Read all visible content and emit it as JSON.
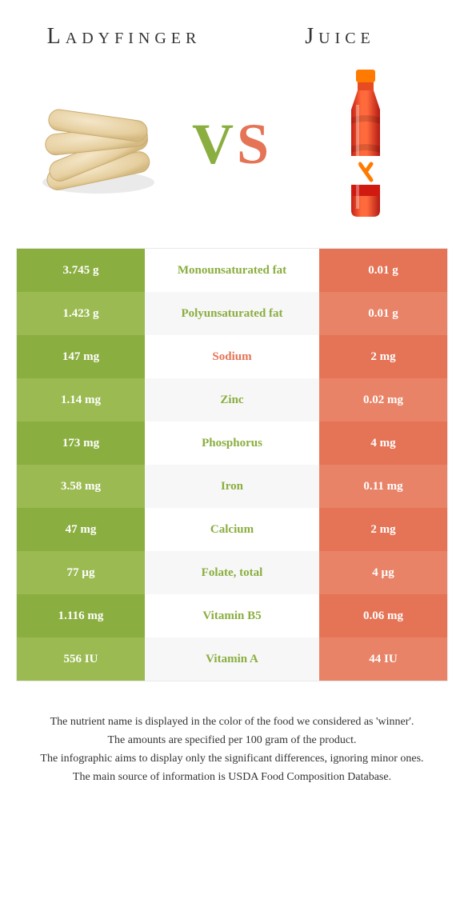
{
  "titleLeft": "Ladyfinger",
  "titleRight": "Juice",
  "vs": {
    "v": "V",
    "s": "S"
  },
  "colors": {
    "leftBg": [
      "#8aae3f",
      "#9bbb52",
      "#8aae3f",
      "#9bbb52",
      "#8aae3f",
      "#9bbb52",
      "#8aae3f",
      "#9bbb52",
      "#8aae3f",
      "#9bbb52"
    ],
    "rightBg": [
      "#e57355",
      "#e88367",
      "#e57355",
      "#e88367",
      "#e57355",
      "#e88367",
      "#e57355",
      "#e88367",
      "#e57355",
      "#e88367"
    ],
    "labelWinnerLeft": "#8aae3f",
    "labelWinnerRight": "#e57355"
  },
  "rows": [
    {
      "left": "3.745 g",
      "label": "Monounsaturated fat",
      "right": "0.01 g",
      "winner": "left"
    },
    {
      "left": "1.423 g",
      "label": "Polyunsaturated fat",
      "right": "0.01 g",
      "winner": "left"
    },
    {
      "left": "147 mg",
      "label": "Sodium",
      "right": "2 mg",
      "winner": "right"
    },
    {
      "left": "1.14 mg",
      "label": "Zinc",
      "right": "0.02 mg",
      "winner": "left"
    },
    {
      "left": "173 mg",
      "label": "Phosphorus",
      "right": "4 mg",
      "winner": "left"
    },
    {
      "left": "3.58 mg",
      "label": "Iron",
      "right": "0.11 mg",
      "winner": "left"
    },
    {
      "left": "47 mg",
      "label": "Calcium",
      "right": "2 mg",
      "winner": "left"
    },
    {
      "left": "77 µg",
      "label": "Folate, total",
      "right": "4 µg",
      "winner": "left"
    },
    {
      "left": "1.116 mg",
      "label": "Vitamin B5",
      "right": "0.06 mg",
      "winner": "left"
    },
    {
      "left": "556 IU",
      "label": "Vitamin A",
      "right": "44 IU",
      "winner": "left"
    }
  ],
  "footnotes": [
    "The nutrient name is displayed in the color of the food we considered as 'winner'.",
    "The amounts are specified per 100 gram of the product.",
    "The infographic aims to display only the significant differences, ignoring minor ones.",
    "The main source of information is USDA Food Composition Database."
  ]
}
